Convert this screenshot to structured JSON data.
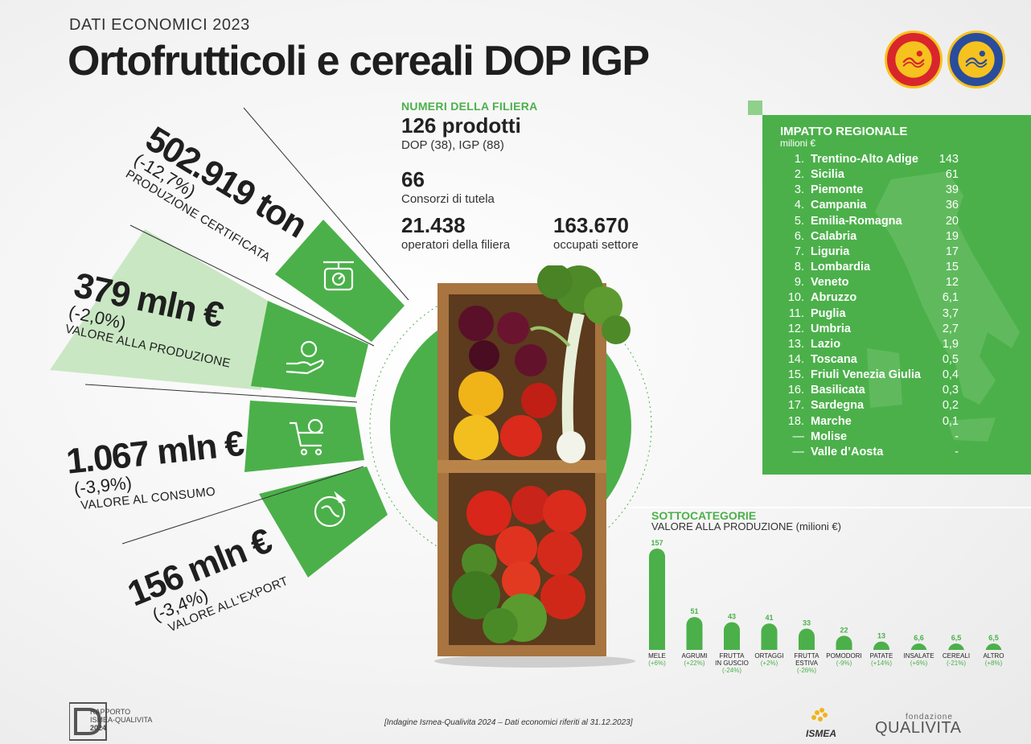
{
  "header": {
    "kicker": "DATI ECONOMICI 2023",
    "title": "Ortofrutticoli e cereali DOP IGP"
  },
  "indicators": [
    {
      "value": "502.919 ton",
      "change": "(-12,7%)",
      "label": "PRODUZIONE CERTIFICATA",
      "icon": "scale-icon"
    },
    {
      "value": "379 mln €",
      "change": "(-2,0%)",
      "label": "VALORE ALLA PRODUZIONE",
      "icon": "hand-coin-icon"
    },
    {
      "value": "1.067 mln €",
      "change": "(-3,9%)",
      "label": "VALORE AL CONSUMO",
      "icon": "cart-coin-icon"
    },
    {
      "value": "156 mln €",
      "change": "(-3,4%)",
      "label": "VALORE ALL'EXPORT",
      "icon": "globe-plane-icon"
    }
  ],
  "filiera": {
    "label": "NUMERI DELLA FILIERA",
    "prodotti": {
      "value": "126 prodotti",
      "sub": "DOP (38), IGP (88)"
    },
    "consorzi": {
      "value": "66",
      "sub": "Consorzi di tutela"
    },
    "operatori": {
      "value": "21.438",
      "sub": "operatori della filiera"
    },
    "occupati": {
      "value": "163.670",
      "sub": "occupati settore"
    }
  },
  "regional": {
    "title": "IMPATTO REGIONALE",
    "unit": "milioni €",
    "rows": [
      {
        "rank": "1.",
        "name": "Trentino-Alto Adige",
        "value": "143"
      },
      {
        "rank": "2.",
        "name": "Sicilia",
        "value": "61"
      },
      {
        "rank": "3.",
        "name": "Piemonte",
        "value": "39"
      },
      {
        "rank": "4.",
        "name": "Campania",
        "value": "36"
      },
      {
        "rank": "5.",
        "name": "Emilia-Romagna",
        "value": "20"
      },
      {
        "rank": "6.",
        "name": "Calabria",
        "value": "19"
      },
      {
        "rank": "7.",
        "name": "Liguria",
        "value": "17"
      },
      {
        "rank": "8.",
        "name": "Lombardia",
        "value": "15"
      },
      {
        "rank": "9.",
        "name": "Veneto",
        "value": "12"
      },
      {
        "rank": "10.",
        "name": "Abruzzo",
        "value": "6,1"
      },
      {
        "rank": "11.",
        "name": "Puglia",
        "value": "3,7"
      },
      {
        "rank": "12.",
        "name": "Umbria",
        "value": "2,7"
      },
      {
        "rank": "13.",
        "name": "Lazio",
        "value": "1,9"
      },
      {
        "rank": "14.",
        "name": "Toscana",
        "value": "0,5"
      },
      {
        "rank": "15.",
        "name": "Friuli Venezia Giulia",
        "value": "0,4"
      },
      {
        "rank": "16.",
        "name": "Basilicata",
        "value": "0,3"
      },
      {
        "rank": "17.",
        "name": "Sardegna",
        "value": "0,2"
      },
      {
        "rank": "18.",
        "name": "Marche",
        "value": "0,1"
      },
      {
        "rank": "—",
        "name": "Molise",
        "value": "-"
      },
      {
        "rank": "—",
        "name": "Valle d’Aosta",
        "value": "-"
      }
    ]
  },
  "chart_data": {
    "type": "bar",
    "title": "SOTTOCATEGORIE",
    "subtitle": "VALORE ALLA PRODUZIONE (milioni €)",
    "categories": [
      "MELE",
      "AGRUMI",
      "FRUTTA IN GUSCIO",
      "ORTAGGI",
      "FRUTTA ESTIVA",
      "POMODORI",
      "PATATE",
      "INSALATE",
      "CEREALI",
      "ALTRO"
    ],
    "category_lines": [
      [
        "MELE"
      ],
      [
        "AGRUMI"
      ],
      [
        "FRUTTA",
        "IN GUSCIO"
      ],
      [
        "ORTAGGI"
      ],
      [
        "FRUTTA",
        "ESTIVA"
      ],
      [
        "POMODORI"
      ],
      [
        "PATATE"
      ],
      [
        "INSALATE"
      ],
      [
        "CEREALI"
      ],
      [
        "ALTRO"
      ]
    ],
    "values": [
      157,
      51,
      43,
      41,
      33,
      22,
      13,
      6.6,
      6.5,
      6.5
    ],
    "value_labels": [
      "157",
      "51",
      "43",
      "41",
      "33",
      "22",
      "13",
      "6,6",
      "6,5",
      "6,5"
    ],
    "changes": [
      "(+6%)",
      "(+22%)",
      "(-24%)",
      "(+2%)",
      "(-26%)",
      "(-9%)",
      "(+14%)",
      "(+6%)",
      "(-21%)",
      "(+8%)"
    ],
    "ylim": [
      0,
      157
    ],
    "grid": false,
    "colors": {
      "bar": "#4bb04a",
      "label": "#4bb04a"
    }
  },
  "footer": {
    "note": "[Indagine Ismea-Qualivita 2024 – Dati economici riferiti al 31.12.2023]",
    "report_logo": [
      "RAPPORTO",
      "ISMEA-QUALIVITA",
      "2024"
    ],
    "ismea_logo": "ISMEA",
    "qualivita_logo": {
      "small": "fondazione",
      "big": "QUALIVITA"
    }
  },
  "colors": {
    "green": "#4bb04a",
    "light_green": "#c9e7c3",
    "text": "#222222"
  }
}
